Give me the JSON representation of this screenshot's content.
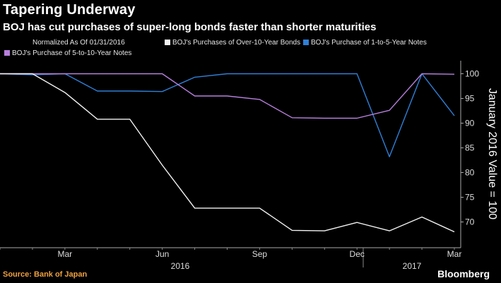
{
  "chart_data": {
    "type": "line",
    "title": "Tapering Underway",
    "subtitle": "BOJ has cut purchases of super-long bonds faster than shorter maturities",
    "legend_note": "Normalized As Of 01/31/2016",
    "ylabel": "January 2016 Value = 100",
    "ylim": [
      65,
      102
    ],
    "yticks": [
      "100",
      "95",
      "90",
      "85",
      "80",
      "75",
      "70"
    ],
    "xticks": [
      "Mar",
      "Jun",
      "Sep",
      "Dec",
      "Mar"
    ],
    "xtick_years": [
      "2016",
      "2017"
    ],
    "grid": false,
    "legend_position": "top",
    "x": [
      "2016-01",
      "2016-02",
      "2016-03",
      "2016-04",
      "2016-05",
      "2016-06",
      "2016-07",
      "2016-08",
      "2016-09",
      "2016-10",
      "2016-11",
      "2016-12",
      "2017-01",
      "2017-02",
      "2017-03"
    ],
    "series": [
      {
        "name": "BOJ's Purchases of Over-10-Year Bonds",
        "color": "#f2f2f2",
        "values": [
          100,
          100,
          96.2,
          90.8,
          90.8,
          81.5,
          72.8,
          72.8,
          72.8,
          68.3,
          68.2,
          69.9,
          68.2,
          71.0,
          68.0
        ]
      },
      {
        "name": "BOJ's Purchase of 1-to-5-Year Notes",
        "color": "#2f7fd6",
        "values": [
          100,
          99.8,
          100,
          96.5,
          96.5,
          96.4,
          99.3,
          100,
          100,
          100,
          100,
          100,
          83.2,
          100,
          91.5
        ]
      },
      {
        "name": "BOJ's Purchase of 5-to-10-Year Notes",
        "color": "#b77fdc",
        "values": [
          100,
          100,
          100,
          100,
          100,
          100,
          95.5,
          95.5,
          94.8,
          91.1,
          91.0,
          91.0,
          92.6,
          100,
          99.9
        ]
      }
    ]
  },
  "source": "Source: Bank of Japan",
  "brand": "Bloomberg"
}
